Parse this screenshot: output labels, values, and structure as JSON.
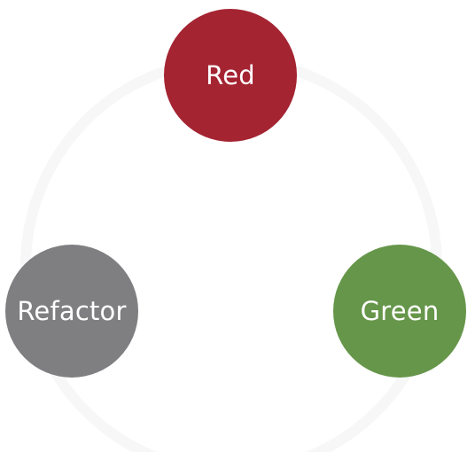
{
  "cycle": {
    "ring_color": "#f7f7f7",
    "nodes": [
      {
        "label": "Red",
        "color": "#a42432"
      },
      {
        "label": "Green",
        "color": "#66964a"
      },
      {
        "label": "Refactor",
        "color": "#7f7f82"
      }
    ]
  }
}
